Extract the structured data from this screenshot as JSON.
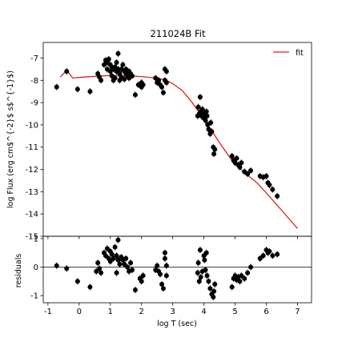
{
  "chart_data": {
    "type": "scatter",
    "title": "211024B Fit",
    "xlabel": "log T (sec)",
    "xlim": [
      -1.15,
      7.45
    ],
    "xticks": [
      "-1",
      "0",
      "1",
      "2",
      "3",
      "4",
      "5",
      "6",
      "7"
    ],
    "colors": {
      "data": "#000000",
      "fit": "#e02020",
      "zero_line": "#000000"
    },
    "legend_position": "top-right",
    "upper_panel": {
      "ylabel": "log Flux (erg cm$^{-2}$ s$^{-1}$)",
      "ylim": [
        -15.0,
        -6.3
      ],
      "yticks": [
        "-15",
        "-14",
        "-13",
        "-12",
        "-11",
        "-10",
        "-9",
        "-8",
        "-7"
      ],
      "series": [
        {
          "name": "fit",
          "kind": "line",
          "x": [
            -0.6,
            -0.4,
            -0.2,
            0.0,
            0.5,
            1.0,
            1.5,
            2.0,
            2.5,
            2.8,
            3.0,
            3.3,
            3.6,
            3.9,
            4.2,
            4.5,
            4.9,
            5.3,
            5.7,
            6.0,
            6.5,
            7.0
          ],
          "y": [
            -7.85,
            -7.55,
            -7.9,
            -7.87,
            -7.82,
            -7.78,
            -7.8,
            -7.83,
            -7.9,
            -8.0,
            -8.15,
            -8.45,
            -8.95,
            -9.55,
            -10.15,
            -10.8,
            -11.6,
            -12.15,
            -12.6,
            -13.05,
            -13.85,
            -14.65
          ]
        },
        {
          "name": "data",
          "kind": "points",
          "x": [
            -0.72,
            -0.4,
            -0.05,
            0.35,
            0.6,
            0.65,
            0.7,
            0.8,
            0.85,
            0.9,
            0.9,
            0.95,
            1.0,
            1.0,
            1.05,
            1.05,
            1.1,
            1.1,
            1.15,
            1.15,
            1.2,
            1.2,
            1.25,
            1.25,
            1.3,
            1.3,
            1.35,
            1.35,
            1.4,
            1.45,
            1.45,
            1.5,
            1.5,
            1.55,
            1.6,
            1.6,
            1.65,
            1.7,
            1.8,
            1.9,
            2.0,
            2.0,
            2.05,
            2.45,
            2.5,
            2.55,
            2.6,
            2.65,
            2.7,
            2.75,
            2.75,
            2.8,
            2.8,
            3.8,
            3.82,
            3.85,
            3.88,
            3.9,
            3.92,
            3.95,
            4.0,
            4.02,
            4.05,
            4.08,
            4.1,
            4.12,
            4.15,
            4.2,
            4.22,
            4.25,
            4.3,
            4.32,
            4.35,
            4.9,
            4.95,
            5.0,
            5.05,
            5.1,
            5.15,
            5.2,
            5.3,
            5.4,
            5.5,
            5.8,
            5.9,
            6.0,
            6.05,
            6.1,
            6.2,
            6.35
          ],
          "y": [
            -8.3,
            -7.6,
            -8.4,
            -8.5,
            -7.7,
            -7.85,
            -8.0,
            -7.3,
            -7.1,
            -7.5,
            -7.2,
            -7.05,
            -7.3,
            -7.6,
            -7.4,
            -7.8,
            -7.5,
            -8.0,
            -7.4,
            -7.9,
            -7.6,
            -7.2,
            -6.8,
            -7.5,
            -7.7,
            -8.0,
            -7.5,
            -7.85,
            -7.3,
            -7.6,
            -7.95,
            -7.7,
            -7.5,
            -7.8,
            -7.6,
            -7.9,
            -7.7,
            -7.8,
            -8.65,
            -8.2,
            -8.3,
            -8.1,
            -8.2,
            -7.9,
            -8.1,
            -8.0,
            -8.2,
            -8.3,
            -8.55,
            -7.5,
            -8.0,
            -7.6,
            -8.1,
            -9.6,
            -9.2,
            -9.5,
            -8.75,
            -9.4,
            -9.6,
            -9.3,
            -9.7,
            -9.5,
            -9.8,
            -9.4,
            -9.6,
            -10.0,
            -10.2,
            -10.4,
            -9.9,
            -10.3,
            -11.0,
            -11.3,
            -11.1,
            -11.4,
            -11.6,
            -11.7,
            -11.5,
            -11.8,
            -11.9,
            -11.7,
            -12.1,
            -12.2,
            -12.05,
            -12.3,
            -12.35,
            -12.3,
            -12.6,
            -12.7,
            -12.9,
            -13.2
          ]
        }
      ]
    },
    "lower_panel": {
      "ylabel": "residuals",
      "ylim": [
        -1.25,
        1.08
      ],
      "yticks": [
        "-1",
        "0",
        "1"
      ],
      "zero_line": 0,
      "series": [
        {
          "name": "residuals",
          "kind": "points",
          "x": [
            -0.72,
            -0.4,
            -0.05,
            0.35,
            0.55,
            0.6,
            0.65,
            0.7,
            0.8,
            0.85,
            0.9,
            0.95,
            1.0,
            1.0,
            1.05,
            1.1,
            1.15,
            1.2,
            1.2,
            1.25,
            1.25,
            1.3,
            1.35,
            1.4,
            1.45,
            1.5,
            1.55,
            1.6,
            1.65,
            1.7,
            1.8,
            1.95,
            2.0,
            2.05,
            2.45,
            2.5,
            2.55,
            2.6,
            2.65,
            2.7,
            2.75,
            2.75,
            2.8,
            2.8,
            3.8,
            3.82,
            3.85,
            3.88,
            3.9,
            3.95,
            4.0,
            4.02,
            4.05,
            4.08,
            4.1,
            4.15,
            4.2,
            4.25,
            4.3,
            4.32,
            4.35,
            4.9,
            4.95,
            5.0,
            5.05,
            5.1,
            5.15,
            5.2,
            5.3,
            5.4,
            5.5,
            5.8,
            5.9,
            6.0,
            6.05,
            6.1,
            6.2,
            6.35
          ],
          "y": [
            0.05,
            -0.05,
            -0.5,
            -0.7,
            -0.15,
            0.15,
            -0.05,
            -0.2,
            0.5,
            0.4,
            0.65,
            0.3,
            0.55,
            0.2,
            0.45,
            0.3,
            0.7,
            -0.2,
            0.4,
            0.95,
            0.25,
            0.1,
            0.35,
            0.25,
            0.1,
            0.3,
            0.0,
            -0.15,
            0.15,
            -0.1,
            -0.8,
            -0.4,
            -0.5,
            -0.3,
            -0.1,
            0.05,
            -0.15,
            -0.25,
            -0.6,
            -0.75,
            0.5,
            0.3,
            -0.3,
            0.05,
            -0.2,
            0.15,
            -0.5,
            0.6,
            -0.35,
            -0.15,
            0.4,
            0.25,
            -0.1,
            0.5,
            -0.3,
            -0.5,
            -0.75,
            -0.95,
            -1.05,
            -0.85,
            -0.6,
            -0.7,
            -0.4,
            -0.3,
            -0.45,
            -0.35,
            -0.5,
            -0.3,
            -0.4,
            -0.2,
            0.0,
            0.3,
            0.4,
            0.6,
            0.5,
            0.55,
            0.4,
            0.45
          ]
        }
      ]
    }
  }
}
